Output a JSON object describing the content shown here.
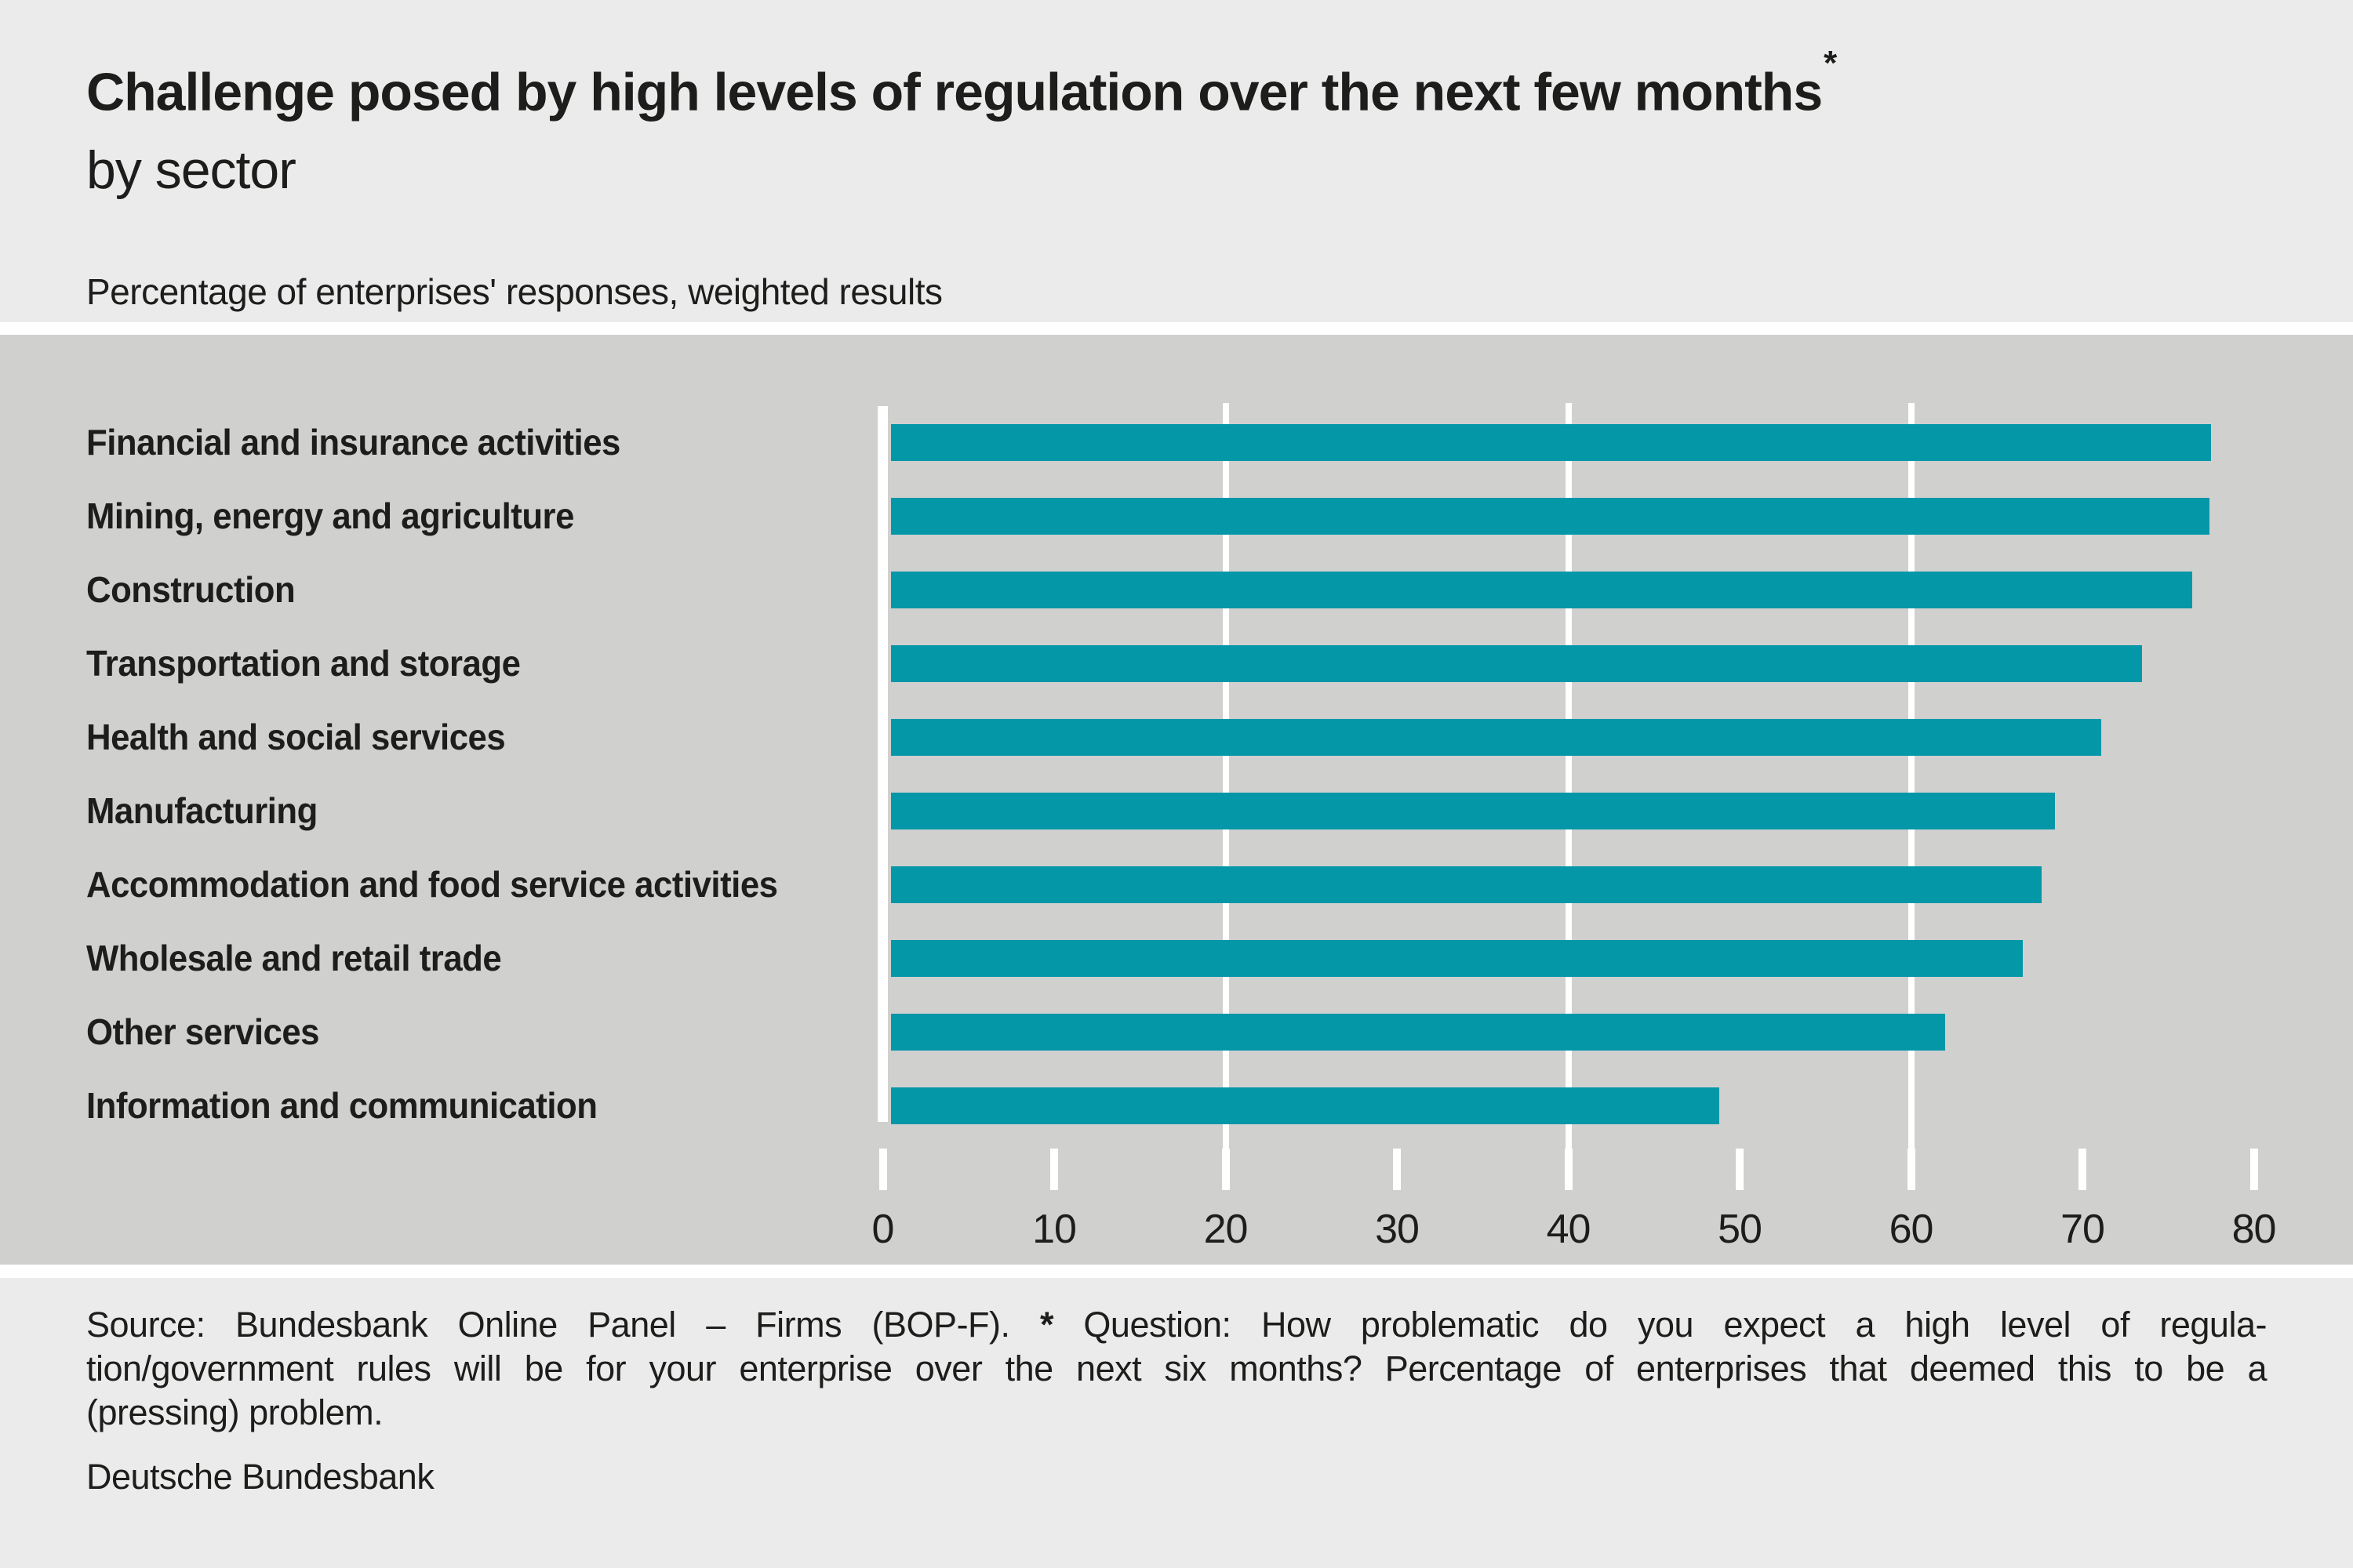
{
  "header": {
    "title": "Challenge posed by high levels of regulation over the next few months",
    "title_star": "*",
    "subtitle": "by sector",
    "unit_note": "Percentage of enterprises' responses, weighted results"
  },
  "chart_data": {
    "type": "bar",
    "orientation": "horizontal",
    "title": "Challenge posed by high levels of regulation over the next few months* by sector",
    "xlabel": "Percentage of enterprises' responses, weighted results",
    "categories": [
      "Financial and insurance activities",
      "Mining, energy and agriculture",
      "Construction",
      "Transportation and storage",
      "Health and social services",
      "Manufacturing",
      "Accommodation and food service activities",
      "Wholesale and retail trade",
      "Other services",
      "Information and communication"
    ],
    "values": [
      77.5,
      77.4,
      76.4,
      73.5,
      71.1,
      68.4,
      67.6,
      66.5,
      62.0,
      48.8
    ],
    "xlim": [
      0,
      80
    ],
    "xticks": [
      0,
      10,
      20,
      30,
      40,
      50,
      60,
      70,
      80
    ],
    "gridlines_at": [
      20,
      40,
      60
    ],
    "grid": "on",
    "legend": "none"
  },
  "colors": {
    "bar": "#0497a8",
    "plot_background": "#d0d0cf",
    "page_background": "#ebebeb",
    "gridline": "#ffffff",
    "text": "#1d1d1b"
  },
  "footer": {
    "line1_pre": "Source: Bundesbank Online Panel – Firms (BOP-F).",
    "line1_star": "*",
    "line1_post": "Question: How problematic do you expect a high level of regula-",
    "line2": "tion/government rules will be for your enterprise over the next six months? Percentage of enterprises that deemed this to be a",
    "line3": "(pressing) problem.",
    "publisher": "Deutsche Bundesbank"
  }
}
